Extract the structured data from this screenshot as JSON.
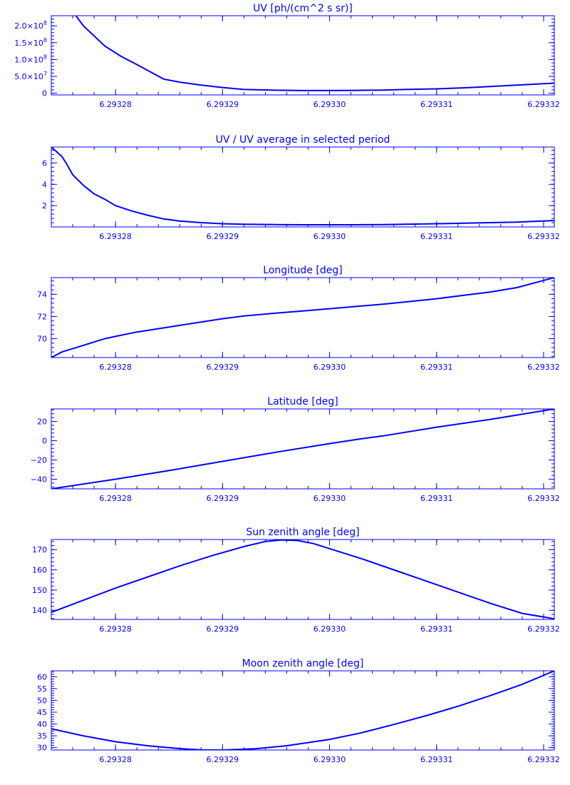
{
  "colors": {
    "foreground": "#0000ff",
    "background": "#ffffff"
  },
  "chart_data": [
    {
      "type": "line",
      "title": "UV [ph/(cm^2 s sr)]",
      "xlim": [
        6.293274,
        6.293321
      ],
      "ylim": [
        -5000000,
        230000000
      ],
      "x_ticks": [
        6.29328,
        6.29329,
        6.2933,
        6.29331,
        6.29332
      ],
      "x_tick_labels": [
        "6.29328",
        "6.29329",
        "6.29330",
        "6.29331",
        "6.29332"
      ],
      "y_ticks": [
        0,
        50000000,
        100000000,
        150000000,
        200000000
      ],
      "y_tick_labels": [
        {
          "mant": "0",
          "exp": ""
        },
        {
          "mant": "5.0×10",
          "exp": "7"
        },
        {
          "mant": "1.0×10",
          "exp": "8"
        },
        {
          "mant": "1.5×10",
          "exp": "8"
        },
        {
          "mant": "2.0×10",
          "exp": "8"
        }
      ],
      "series": [
        {
          "x": [
            6.2932763,
            6.293277,
            6.293278,
            6.293279,
            6.2932805,
            6.293282,
            6.2932845,
            6.293286,
            6.293288,
            6.29329,
            6.293292,
            6.293295,
            6.2932975,
            6.2933,
            6.2933025,
            6.293305,
            6.293307,
            6.29331,
            6.2933125,
            6.293315,
            6.2933175,
            6.293321
          ],
          "y": [
            230000000,
            200000000,
            170000000,
            140000000,
            110000000,
            85000000,
            42000000,
            33000000,
            24000000,
            17000000,
            11000000,
            9000000,
            8000000,
            8000000,
            8500000,
            9500000,
            11000000,
            13000000,
            16000000,
            20000000,
            24000000,
            30000000
          ]
        }
      ]
    },
    {
      "type": "line",
      "title": "UV / UV average in selected period",
      "xlim": [
        6.293274,
        6.293321
      ],
      "ylim": [
        0,
        7.5
      ],
      "x_ticks": [
        6.29328,
        6.29329,
        6.2933,
        6.29331,
        6.29332
      ],
      "x_tick_labels": [
        "6.29328",
        "6.29329",
        "6.29330",
        "6.29331",
        "6.29332"
      ],
      "y_ticks": [
        2,
        4,
        6
      ],
      "y_tick_labels": [
        {
          "mant": "2"
        },
        {
          "mant": "4"
        },
        {
          "mant": "6"
        }
      ],
      "series": [
        {
          "x": [
            6.293274,
            6.293275,
            6.2932755,
            6.293276,
            6.293277,
            6.293278,
            6.293279,
            6.29328,
            6.2932815,
            6.293283,
            6.2932845,
            6.293286,
            6.293288,
            6.29329,
            6.293292,
            6.293295,
            6.2932975,
            6.2933,
            6.2933025,
            6.293305,
            6.293307,
            6.29331,
            6.2933125,
            6.293315,
            6.2933175,
            6.293321
          ],
          "y": [
            7.5,
            6.6,
            5.8,
            4.9,
            3.9,
            3.1,
            2.6,
            2.0,
            1.5,
            1.1,
            0.75,
            0.55,
            0.4,
            0.3,
            0.25,
            0.22,
            0.2,
            0.2,
            0.2,
            0.22,
            0.25,
            0.3,
            0.35,
            0.4,
            0.45,
            0.6
          ]
        }
      ]
    },
    {
      "type": "line",
      "title": "Longitude [deg]",
      "xlim": [
        6.293274,
        6.293321
      ],
      "ylim": [
        68.3,
        75.5
      ],
      "x_ticks": [
        6.29328,
        6.29329,
        6.2933,
        6.29331,
        6.29332
      ],
      "x_tick_labels": [
        "6.29328",
        "6.29329",
        "6.29330",
        "6.29331",
        "6.29332"
      ],
      "y_ticks": [
        70,
        72,
        74
      ],
      "y_tick_labels": [
        {
          "mant": "70"
        },
        {
          "mant": "72"
        },
        {
          "mant": "74"
        }
      ],
      "series": [
        {
          "x": [
            6.293274,
            6.293275,
            6.293276,
            6.293277,
            6.293278,
            6.293279,
            6.29328,
            6.293282,
            6.293284,
            6.293286,
            6.293288,
            6.29329,
            6.293292,
            6.293295,
            6.2932975,
            6.2933,
            6.2933025,
            6.293305,
            6.293307,
            6.29331,
            6.2933125,
            6.293315,
            6.2933175,
            6.293321
          ],
          "y": [
            68.3,
            68.8,
            69.1,
            69.4,
            69.7,
            70.0,
            70.2,
            70.6,
            70.9,
            71.2,
            71.5,
            71.8,
            72.05,
            72.3,
            72.5,
            72.7,
            72.9,
            73.1,
            73.3,
            73.6,
            73.9,
            74.2,
            74.6,
            75.5
          ]
        }
      ]
    },
    {
      "type": "line",
      "title": "Latitude [deg]",
      "xlim": [
        6.293274,
        6.293321
      ],
      "ylim": [
        -50,
        33
      ],
      "x_ticks": [
        6.29328,
        6.29329,
        6.2933,
        6.29331,
        6.29332
      ],
      "x_tick_labels": [
        "6.29328",
        "6.29329",
        "6.29330",
        "6.29331",
        "6.29332"
      ],
      "y_ticks": [
        -40,
        -20,
        0,
        20
      ],
      "y_tick_labels": [
        {
          "mant": "−40"
        },
        {
          "mant": "−20"
        },
        {
          "mant": "0"
        },
        {
          "mant": "20"
        }
      ],
      "series": [
        {
          "x": [
            6.293274,
            6.29328,
            6.293285,
            6.29329,
            6.293295,
            6.2933,
            6.293303,
            6.293305,
            6.29331,
            6.293315,
            6.293321
          ],
          "y": [
            -50,
            -40,
            -31,
            -21.5,
            -12,
            -3,
            2,
            5,
            14,
            22,
            33
          ]
        }
      ]
    },
    {
      "type": "line",
      "title": "Sun zenith angle [deg]",
      "xlim": [
        6.293274,
        6.293321
      ],
      "ylim": [
        135.5,
        175
      ],
      "x_ticks": [
        6.29328,
        6.29329,
        6.2933,
        6.29331,
        6.29332
      ],
      "x_tick_labels": [
        "6.29328",
        "6.29329",
        "6.29330",
        "6.29331",
        "6.29332"
      ],
      "y_ticks": [
        140,
        150,
        160,
        170
      ],
      "y_tick_labels": [
        {
          "mant": "140"
        },
        {
          "mant": "150"
        },
        {
          "mant": "160"
        },
        {
          "mant": "170"
        }
      ],
      "series": [
        {
          "x": [
            6.293274,
            6.293277,
            6.29328,
            6.293283,
            6.293286,
            6.293289,
            6.293292,
            6.293294,
            6.2932955,
            6.293297,
            6.2932985,
            6.2933,
            6.293303,
            6.293306,
            6.293309,
            6.293312,
            6.293315,
            6.293318,
            6.293321
          ],
          "y": [
            139,
            145,
            151,
            156.5,
            162,
            167,
            171.5,
            174,
            174.8,
            174.5,
            173,
            170.5,
            165.5,
            160,
            154.5,
            149,
            143.5,
            138.5,
            135.8
          ]
        }
      ]
    },
    {
      "type": "line",
      "title": "Moon zenith angle [deg]",
      "xlim": [
        6.293274,
        6.293321
      ],
      "ylim": [
        29,
        62.5
      ],
      "x_ticks": [
        6.29328,
        6.29329,
        6.2933,
        6.29331,
        6.29332
      ],
      "x_tick_labels": [
        "6.29328",
        "6.29329",
        "6.29330",
        "6.29331",
        "6.29332"
      ],
      "y_ticks": [
        30,
        35,
        40,
        45,
        50,
        55,
        60
      ],
      "y_tick_labels": [
        {
          "mant": "30"
        },
        {
          "mant": "35"
        },
        {
          "mant": "40"
        },
        {
          "mant": "45"
        },
        {
          "mant": "50"
        },
        {
          "mant": "55"
        },
        {
          "mant": "60"
        }
      ],
      "series": [
        {
          "x": [
            6.293274,
            6.293277,
            6.29328,
            6.293283,
            6.293286,
            6.293288,
            6.29329,
            6.293293,
            6.293296,
            6.2933,
            6.293303,
            6.293306,
            6.293309,
            6.293312,
            6.293315,
            6.293318,
            6.293321
          ],
          "y": [
            38,
            35,
            32.5,
            30.8,
            29.6,
            29.1,
            29.0,
            29.5,
            30.8,
            33.5,
            36.3,
            39.8,
            43.5,
            47.5,
            52,
            56.8,
            62.5
          ]
        }
      ]
    }
  ]
}
